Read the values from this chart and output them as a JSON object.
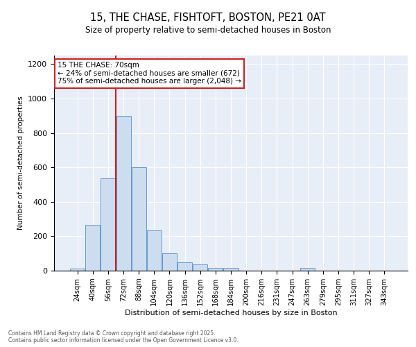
{
  "title1": "15, THE CHASE, FISHTOFT, BOSTON, PE21 0AT",
  "title2": "Size of property relative to semi-detached houses in Boston",
  "xlabel": "Distribution of semi-detached houses by size in Boston",
  "ylabel": "Number of semi-detached properties",
  "bin_labels": [
    "24sqm",
    "40sqm",
    "56sqm",
    "72sqm",
    "88sqm",
    "104sqm",
    "120sqm",
    "136sqm",
    "152sqm",
    "168sqm",
    "184sqm",
    "200sqm",
    "216sqm",
    "231sqm",
    "247sqm",
    "263sqm",
    "279sqm",
    "295sqm",
    "311sqm",
    "327sqm",
    "343sqm"
  ],
  "bin_values": [
    12,
    265,
    535,
    900,
    600,
    235,
    100,
    50,
    35,
    15,
    15,
    0,
    0,
    0,
    0,
    15,
    0,
    0,
    0,
    0,
    0
  ],
  "bar_color": "#ccddf0",
  "bar_edge_color": "#6699cc",
  "vline_color": "#cc2222",
  "vline_x_index": 2.5,
  "annotation_title": "15 THE CHASE: 70sqm",
  "annotation_line1": "← 24% of semi-detached houses are smaller (672)",
  "annotation_line2": "75% of semi-detached houses are larger (2,048) →",
  "annotation_box_color": "#ffffff",
  "annotation_box_edge": "#cc2222",
  "footer1": "Contains HM Land Registry data © Crown copyright and database right 2025.",
  "footer2": "Contains public sector information licensed under the Open Government Licence v3.0.",
  "bg_color": "#e8eef8",
  "ylim": [
    0,
    1250
  ],
  "yticks": [
    0,
    200,
    400,
    600,
    800,
    1000,
    1200
  ]
}
